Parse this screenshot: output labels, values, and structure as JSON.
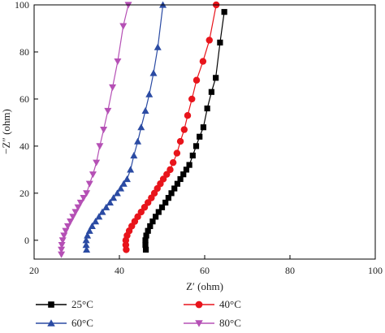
{
  "chart_data": {
    "type": "line",
    "xlabel": "Z′ (ohm)",
    "ylabel": "−Z″ (ohm)",
    "xlim": [
      20,
      100
    ],
    "ylim": [
      -8,
      100
    ],
    "xticks": [
      20,
      40,
      60,
      80,
      100
    ],
    "yticks": [
      0,
      20,
      40,
      60,
      80,
      100
    ],
    "xtick_labels": [
      "20",
      "40",
      "60",
      "80",
      "100"
    ],
    "ytick_labels": [
      "0",
      "20",
      "40",
      "60",
      "80",
      "100"
    ],
    "grid": false,
    "legend_position": "bottom",
    "series": [
      {
        "name": "25°C",
        "color": "#000000",
        "marker": "square",
        "x": [
          46.2,
          46.1,
          46.1,
          46.3,
          46.7,
          47.2,
          47.8,
          48.5,
          49.2,
          50.0,
          50.8,
          51.5,
          52.2,
          52.9,
          53.6,
          54.3,
          55.0,
          55.7,
          56.4,
          57.2,
          58.0,
          58.8,
          59.7,
          60.6,
          61.6,
          62.6,
          63.6,
          64.6
        ],
        "y": [
          -4,
          -2,
          0,
          2,
          4,
          6,
          8,
          10,
          12,
          14,
          16,
          18,
          20,
          22,
          24,
          26,
          28,
          30,
          32,
          36,
          40,
          44,
          48,
          56,
          63,
          69,
          84,
          97
        ]
      },
      {
        "name": "40°C",
        "color": "#e8141b",
        "marker": "circle",
        "x": [
          41.6,
          41.5,
          41.5,
          41.8,
          42.3,
          42.9,
          43.6,
          44.3,
          45.1,
          45.9,
          46.7,
          47.5,
          48.2,
          48.9,
          49.6,
          50.3,
          51.1,
          51.9,
          52.6,
          53.5,
          54.3,
          55.2,
          56.0,
          57.0,
          58.1,
          59.6,
          61.1,
          62.7
        ],
        "y": [
          -4,
          -2,
          0,
          2,
          4,
          6,
          8,
          10,
          12,
          14,
          16,
          18,
          20,
          22,
          24,
          26,
          28,
          30,
          33,
          37,
          42,
          47,
          53,
          60,
          68,
          76,
          85,
          100
        ]
      },
      {
        "name": "60°C",
        "color": "#2b4ba3",
        "marker": "triangle-up",
        "x": [
          32.3,
          32.2,
          32.2,
          32.5,
          33.0,
          33.6,
          34.4,
          35.2,
          36.0,
          36.9,
          37.8,
          38.6,
          39.5,
          40.3,
          41.0,
          41.8,
          42.6,
          43.4,
          44.3,
          45.1,
          46.1,
          47.0,
          48.0,
          49.0,
          50.2
        ],
        "y": [
          -4,
          -2,
          0,
          2,
          4,
          6,
          8,
          10,
          12,
          14,
          16,
          18,
          20,
          22,
          24,
          26,
          30,
          36,
          42,
          48,
          55,
          62,
          71,
          82,
          100
        ]
      },
      {
        "name": "80°C",
        "color": "#b550b5",
        "marker": "triangle-down",
        "x": [
          26.4,
          26.4,
          26.5,
          26.7,
          27.0,
          27.4,
          27.9,
          28.5,
          29.1,
          29.7,
          30.3,
          30.9,
          31.6,
          32.3,
          33.0,
          33.8,
          34.6,
          35.4,
          36.3,
          37.3,
          38.4,
          39.6,
          40.9,
          42.1
        ],
        "y": [
          -6,
          -4,
          -2,
          0,
          2,
          4,
          6,
          8,
          10,
          12,
          14,
          16,
          18,
          20,
          24,
          28,
          33,
          40,
          47,
          55,
          65,
          76,
          91,
          100
        ]
      }
    ]
  }
}
